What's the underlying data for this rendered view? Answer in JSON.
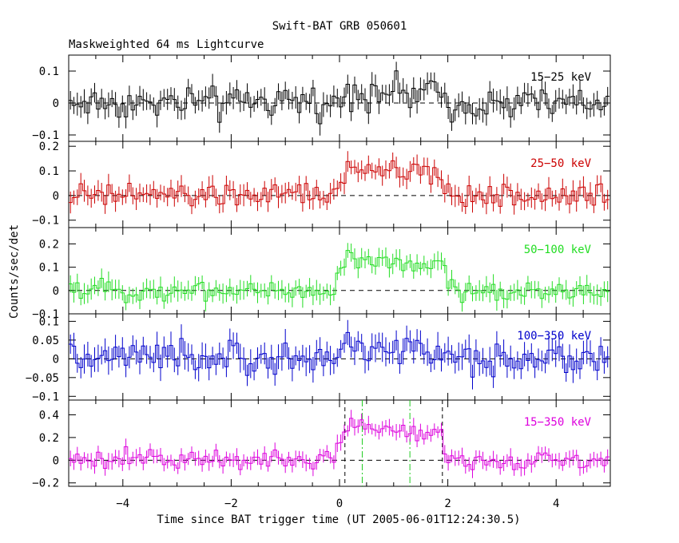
{
  "chart_data": {
    "type": "line",
    "title": "Swift-BAT GRB 050601",
    "subtitle": "Maskweighted 64 ms Lightcurve",
    "xlabel": "Time since BAT trigger time (UT 2005-06-01T12:24:30.5)",
    "ylabel": "Counts/sec/det",
    "xlim": [
      -5,
      5
    ],
    "xticks": [
      -4,
      -2,
      0,
      2,
      4
    ],
    "bin_width_s": 0.064,
    "markers": {
      "t100_start": 0.1,
      "t100_end": 1.9,
      "t90_start": 0.42,
      "t90_end": 1.3,
      "t100_color": "#000000",
      "t90_color": "#22cc22"
    },
    "panels": [
      {
        "name": "15-25 keV",
        "label": "15−25 keV",
        "color": "#000000",
        "ylim": [
          -0.12,
          0.15
        ],
        "yticks": [
          -0.1,
          0,
          0.1
        ],
        "ytick_labels": [
          "−0.1",
          "0",
          "0.1"
        ],
        "pulse": 0.04,
        "noise": 0.035,
        "err": 0.03
      },
      {
        "name": "25-50 keV",
        "label": "25−50 keV",
        "color": "#cc0000",
        "ylim": [
          -0.13,
          0.22
        ],
        "yticks": [
          -0.1,
          0,
          0.1,
          0.2
        ],
        "ytick_labels": [
          "−0.1",
          "0",
          "0.1",
          "0.2"
        ],
        "pulse": 0.11,
        "noise": 0.035,
        "err": 0.035
      },
      {
        "name": "50-100 keV",
        "label": "50−100 keV",
        "color": "#22dd22",
        "ylim": [
          -0.1,
          0.27
        ],
        "yticks": [
          -0.1,
          0,
          0.1,
          0.2
        ],
        "ytick_labels": [
          "−0.1",
          "0",
          "0.1",
          "0.2"
        ],
        "pulse": 0.14,
        "noise": 0.03,
        "err": 0.035
      },
      {
        "name": "100-350 keV",
        "label": "100−350 keV",
        "color": "#0000cc",
        "ylim": [
          -0.11,
          0.12
        ],
        "yticks": [
          -0.1,
          -0.05,
          0,
          0.05,
          0.1
        ],
        "ytick_labels": [
          "−0.1",
          "−0.05",
          "0",
          "0.05",
          "0.1"
        ],
        "pulse": 0.03,
        "noise": 0.03,
        "err": 0.03
      },
      {
        "name": "15-350 keV",
        "label": "15−350 keV",
        "color": "#dd00dd",
        "ylim": [
          -0.23,
          0.53
        ],
        "yticks": [
          -0.2,
          0,
          0.2,
          0.4
        ],
        "ytick_labels": [
          "−0.2",
          "0",
          "0.2",
          "0.4"
        ],
        "pulse": 0.33,
        "noise": 0.06,
        "err": 0.06
      }
    ]
  }
}
